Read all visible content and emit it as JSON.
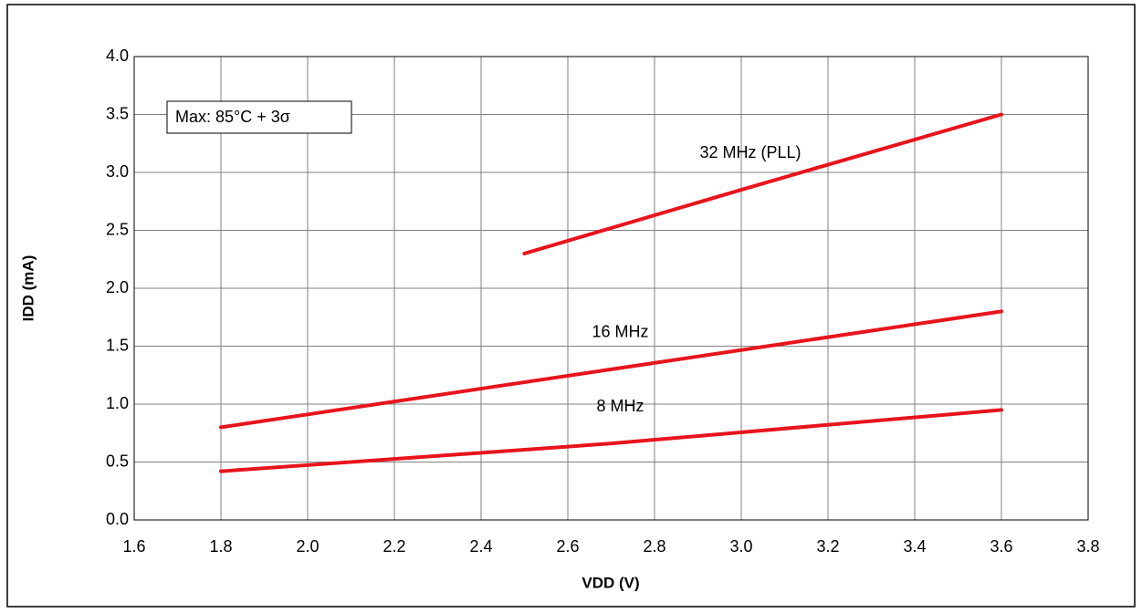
{
  "chart_data": {
    "type": "line",
    "x_label": "VDD (V)",
    "y_label": "IDD (mA)",
    "annotation": "Max: 85°C + 3σ",
    "xlim": [
      1.6,
      3.8
    ],
    "xticks": [
      1.6,
      1.8,
      {
        "value": 2.0,
        "label": "2.0"
      },
      2.2,
      2.4,
      2.6,
      2.8,
      {
        "value": 3.0,
        "label": "3.0"
      },
      3.2,
      3.4,
      3.6,
      3.8
    ],
    "ylim": [
      0,
      4
    ],
    "yticks": [
      {
        "value": 0,
        "label": "0.0"
      },
      0.5,
      {
        "value": 1,
        "label": "1.0"
      },
      1.5,
      {
        "value": 2,
        "label": "2.0"
      },
      2.5,
      {
        "value": 3,
        "label": "3.0"
      },
      3.5,
      {
        "value": 4,
        "label": "4.0"
      }
    ],
    "grid": true,
    "series": [
      {
        "name": "32 MHz (PLL)",
        "color": "#e8141c",
        "x": [
          2.5,
          3.0,
          3.6
        ],
        "values": [
          2.3,
          2.85,
          3.5
        ]
      },
      {
        "name": "16 MHz",
        "color": "#e8141c",
        "x": [
          1.8,
          2.7,
          3.6
        ],
        "values": [
          0.8,
          1.3,
          1.8
        ]
      },
      {
        "name": "8 MHz",
        "color": "#e8141c",
        "x": [
          1.8,
          2.7,
          3.6
        ],
        "values": [
          0.42,
          0.66,
          0.95
        ]
      }
    ]
  }
}
